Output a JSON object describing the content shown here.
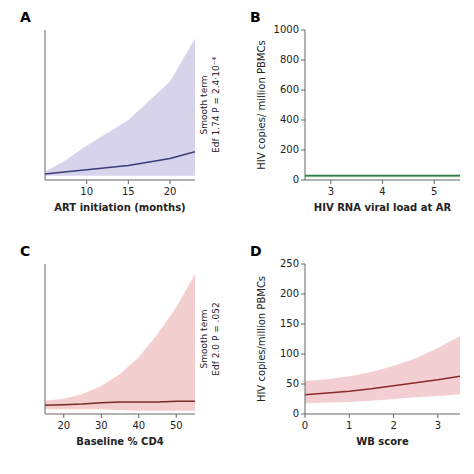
{
  "chart_data": [
    {
      "type": "line",
      "panel_label": "A",
      "xlabel": "ART initiation (months)",
      "annotation": "Smooth term\nEdf 1.74 P = 2.4·10⁻⁴",
      "x": [
        5,
        7,
        10,
        15,
        20,
        23
      ],
      "series": [
        {
          "type": "band",
          "color": "#b0a8d8",
          "upper": [
            0.05,
            0.15,
            0.35,
            0.65,
            1.1,
            1.6
          ],
          "lower": [
            0.0,
            0.0,
            0.0,
            0.0,
            0.0,
            0.0
          ]
        },
        {
          "type": "line",
          "color": "#3b3b7a",
          "values": [
            0.02,
            0.04,
            0.07,
            0.12,
            0.2,
            0.28
          ]
        }
      ],
      "xlim": [
        5,
        23
      ],
      "ylim": [
        -0.05,
        1.7
      ],
      "xticks": [
        10,
        15,
        20
      ],
      "tick_labels": "x"
    },
    {
      "type": "line",
      "panel_label": "B",
      "xlabel": "HIV RNA viral load at AR",
      "ylabel": "HIV copies/ million PBMCs",
      "x": [
        2.5,
        3.0,
        3.5,
        4.0,
        4.5,
        5.0,
        5.5
      ],
      "series": [
        {
          "type": "band",
          "color": "#90c490",
          "upper": [
            40,
            40,
            40,
            40,
            40,
            40,
            40
          ],
          "lower": [
            18,
            18,
            18,
            18,
            18,
            18,
            18
          ]
        },
        {
          "type": "line",
          "color": "#2e7d4f",
          "values": [
            28,
            28,
            28,
            28,
            28,
            28,
            28
          ]
        }
      ],
      "xlim": [
        2.5,
        5.5
      ],
      "ylim": [
        0,
        1000
      ],
      "xticks": [
        3,
        4,
        5
      ],
      "yticks": [
        0,
        200,
        400,
        600,
        800,
        1000
      ]
    },
    {
      "type": "line",
      "panel_label": "C",
      "xlabel": "Baseline % CD4",
      "annotation": "Smooth term\nEdf 2.0 P = .052",
      "x": [
        15,
        20,
        25,
        30,
        35,
        40,
        45,
        50,
        55
      ],
      "series": [
        {
          "type": "band",
          "color": "#e8a0a0",
          "upper": [
            0.15,
            0.18,
            0.25,
            0.37,
            0.55,
            0.8,
            1.15,
            1.55,
            2.05
          ],
          "lower": [
            0.02,
            0.02,
            0.02,
            0.02,
            0.01,
            0.0,
            0.0,
            0.0,
            0.0
          ]
        },
        {
          "type": "line",
          "color": "#7a2a2a",
          "values": [
            0.08,
            0.09,
            0.1,
            0.12,
            0.13,
            0.13,
            0.13,
            0.14,
            0.14
          ]
        }
      ],
      "xlim": [
        15,
        55
      ],
      "ylim": [
        -0.05,
        2.2
      ],
      "xticks": [
        20,
        30,
        40,
        50
      ],
      "tick_labels": "x"
    },
    {
      "type": "line",
      "panel_label": "D",
      "xlabel": "WB score",
      "ylabel": "HIV copies/million PBMCs",
      "x": [
        0,
        0.5,
        1.0,
        1.5,
        2.0,
        2.5,
        3.0,
        3.5
      ],
      "series": [
        {
          "type": "band",
          "color": "#e8a0a8",
          "upper": [
            55,
            58,
            63,
            70,
            80,
            93,
            110,
            130
          ],
          "lower": [
            18,
            19,
            20,
            22,
            25,
            28,
            30,
            33
          ]
        },
        {
          "type": "line",
          "color": "#8b2a2a",
          "values": [
            32,
            35,
            38,
            42,
            47,
            52,
            57,
            63
          ]
        }
      ],
      "xlim": [
        0,
        3.5
      ],
      "ylim": [
        0,
        250
      ],
      "xticks": [
        0,
        1,
        2,
        3
      ],
      "yticks": [
        0,
        50,
        100,
        150,
        200,
        250
      ]
    }
  ]
}
